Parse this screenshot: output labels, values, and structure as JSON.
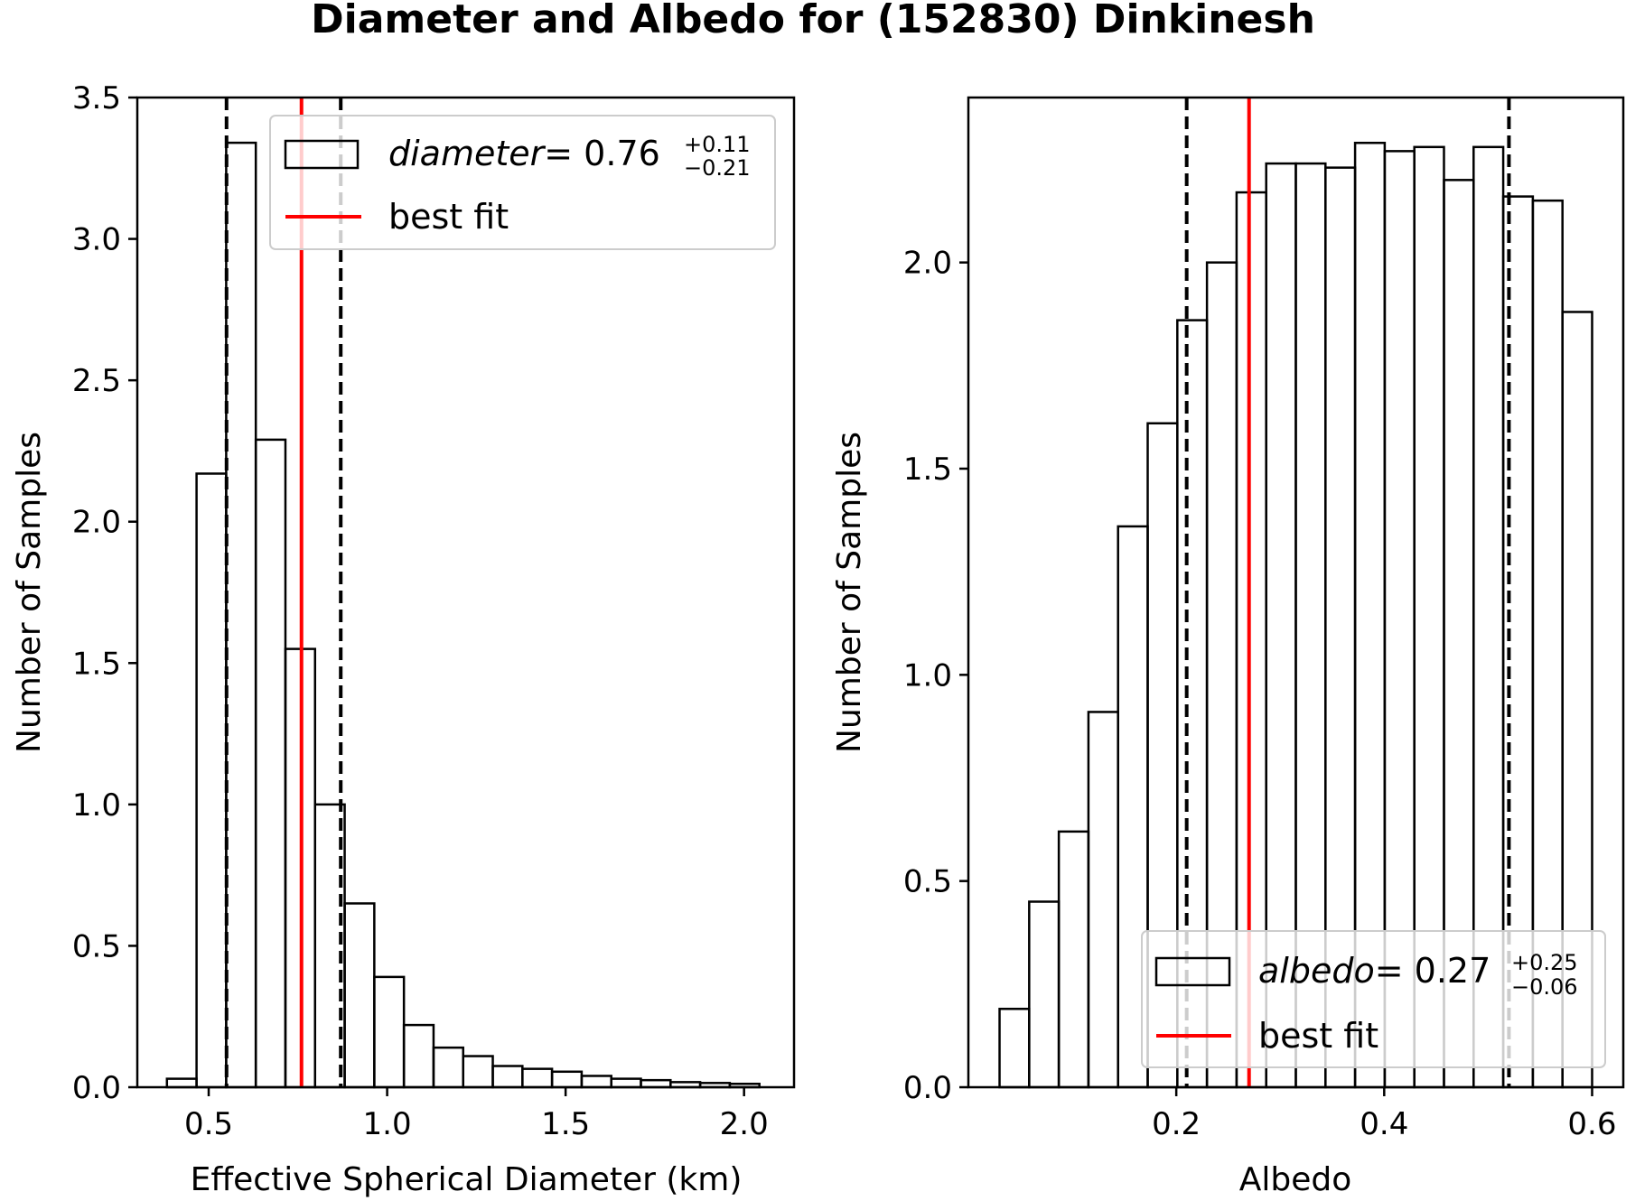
{
  "chart_data": [
    {
      "type": "bar",
      "subtype": "histogram-step",
      "title": "Diameter and Albedo for (152830) Dinkinesh",
      "xlabel": "Effective Spherical Diameter (km)",
      "ylabel": "Number of Samples",
      "xlim": [
        0.3,
        2.14
      ],
      "ylim": [
        0,
        3.5
      ],
      "xticks": [
        "0.5",
        "1.0",
        "1.5",
        "2.0"
      ],
      "yticks": [
        "0.0",
        "0.5",
        "1.0",
        "1.5",
        "2.0",
        "2.5",
        "3.0",
        "3.5"
      ],
      "bin_edges": [
        0.383,
        0.466,
        0.549,
        0.632,
        0.715,
        0.798,
        0.881,
        0.964,
        1.047,
        1.13,
        1.213,
        1.296,
        1.379,
        1.462,
        1.545,
        1.628,
        1.711,
        1.794,
        1.877,
        1.96,
        2.043
      ],
      "values": [
        0.03,
        2.17,
        3.34,
        2.29,
        1.55,
        1.0,
        0.65,
        0.39,
        0.22,
        0.14,
        0.11,
        0.075,
        0.065,
        0.055,
        0.04,
        0.03,
        0.025,
        0.018,
        0.015,
        0.012
      ],
      "best_fit": 0.76,
      "lower_bound": 0.55,
      "upper_bound": 0.87,
      "legend": {
        "position": "upper right",
        "hist_label_var": "diameter",
        "hist_label_eq": "= 0.76",
        "hist_label_plus": "+0.11",
        "hist_label_minus": "−0.21",
        "line_label": "best fit"
      },
      "colors": {
        "hist": "#000000",
        "best_fit": "#ff0000",
        "bounds": "#000000"
      }
    },
    {
      "type": "bar",
      "subtype": "histogram-step",
      "title": "",
      "xlabel": "Albedo",
      "ylabel": "Number of Samples",
      "xlim": [
        0.0,
        0.63
      ],
      "ylim": [
        0,
        2.4
      ],
      "xticks": [
        "0.2",
        "0.4",
        "0.6"
      ],
      "yticks": [
        "0.0",
        "0.5",
        "1.0",
        "1.5",
        "2.0"
      ],
      "bin_edges": [
        0.03,
        0.0585,
        0.087,
        0.1155,
        0.144,
        0.1725,
        0.201,
        0.2295,
        0.258,
        0.2865,
        0.315,
        0.3435,
        0.372,
        0.4005,
        0.429,
        0.4575,
        0.486,
        0.5145,
        0.543,
        0.5715,
        0.6
      ],
      "values": [
        0.19,
        0.45,
        0.62,
        0.91,
        1.36,
        1.61,
        1.86,
        2.0,
        2.17,
        2.24,
        2.24,
        2.23,
        2.29,
        2.27,
        2.28,
        2.2,
        2.28,
        2.16,
        2.15,
        1.88
      ],
      "best_fit": 0.27,
      "lower_bound": 0.21,
      "upper_bound": 0.52,
      "legend": {
        "position": "lower right",
        "hist_label_var": "albedo",
        "hist_label_eq": "= 0.27",
        "hist_label_plus": "+0.25",
        "hist_label_minus": "−0.06",
        "line_label": "best fit"
      },
      "colors": {
        "hist": "#000000",
        "best_fit": "#ff0000",
        "bounds": "#000000"
      }
    }
  ]
}
